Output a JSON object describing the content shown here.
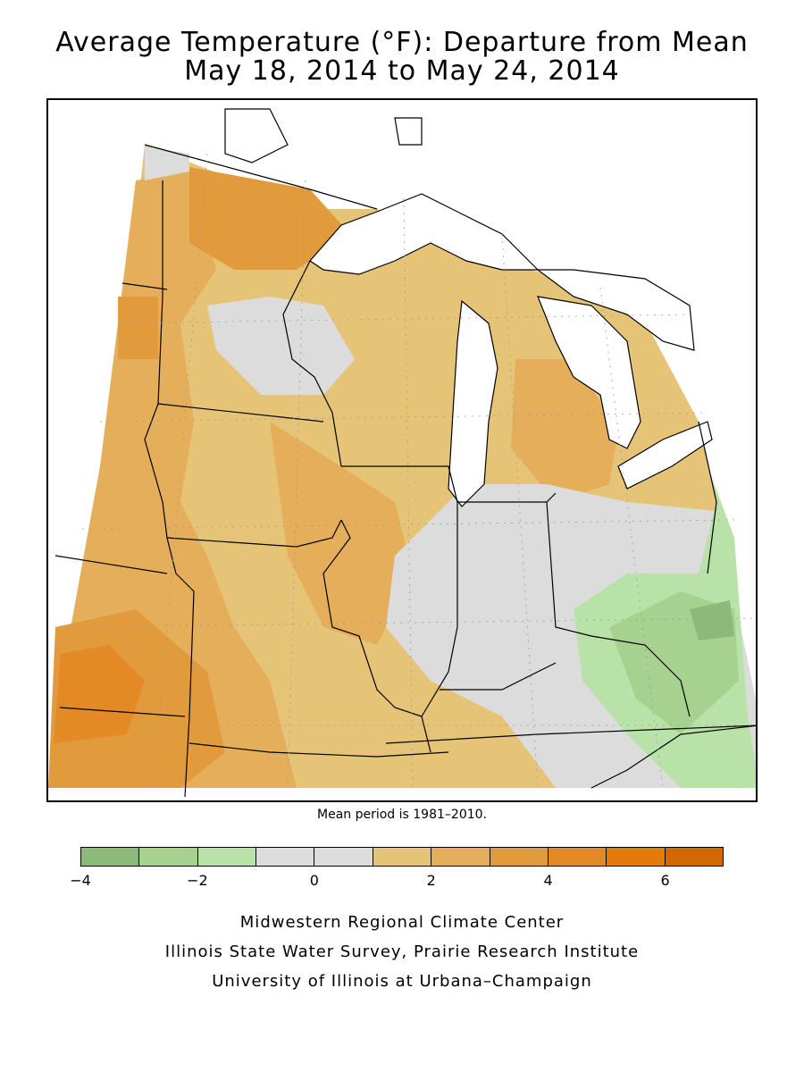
{
  "header": {
    "title_line1": "Average Temperature (°F): Departure from Mean",
    "title_line2": "May 18, 2014 to May 24, 2014"
  },
  "map": {
    "region": "Midwest United States",
    "note": "Mean period is 1981–2010."
  },
  "legend": {
    "bins": [
      {
        "range": [
          -4,
          -3
        ],
        "color": "#8cba78"
      },
      {
        "range": [
          -3,
          -2
        ],
        "color": "#a6d18f"
      },
      {
        "range": [
          -2,
          -1
        ],
        "color": "#b8e2a7"
      },
      {
        "range": [
          -1,
          0
        ],
        "color": "#dcdcdc"
      },
      {
        "range": [
          0,
          1
        ],
        "color": "#dcdcdc"
      },
      {
        "range": [
          1,
          2
        ],
        "color": "#e6c477"
      },
      {
        "range": [
          2,
          3
        ],
        "color": "#e5ae5a"
      },
      {
        "range": [
          3,
          4
        ],
        "color": "#e29b3c"
      },
      {
        "range": [
          4,
          5
        ],
        "color": "#e38a26"
      },
      {
        "range": [
          5,
          6
        ],
        "color": "#e57a0c"
      },
      {
        "range": [
          6,
          7
        ],
        "color": "#d16800"
      }
    ],
    "tick_labels": [
      "−4",
      "−2",
      "0",
      "2",
      "4",
      "6"
    ],
    "tick_values": [
      -4,
      -2,
      0,
      2,
      4,
      6
    ]
  },
  "footer": {
    "line1": "Midwestern Regional Climate Center",
    "line2": "Illinois State Water Survey, Prairie Research Institute",
    "line3": "University of Illinois at Urbana–Champaign"
  }
}
